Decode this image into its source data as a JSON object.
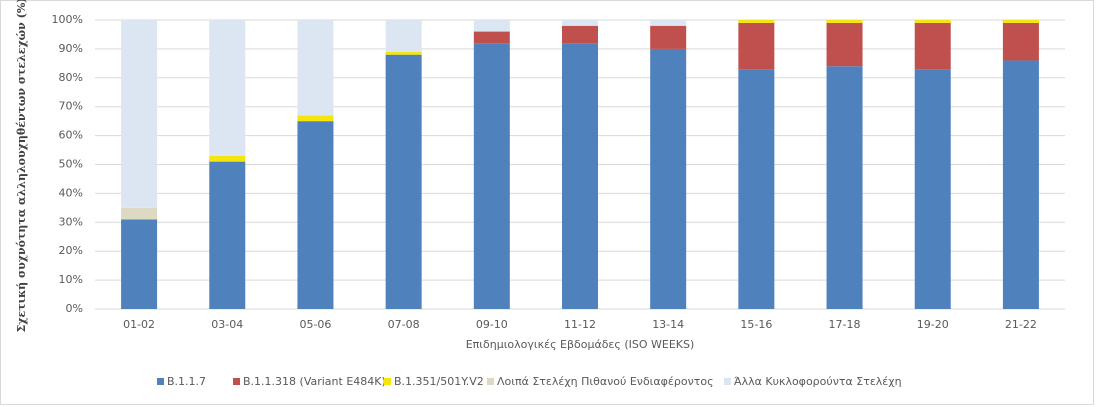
{
  "chart_data": {
    "type": "stacked_bar",
    "y_label": "Σχετική συχνότητα αλληλουχηθέντων στελεχών (%)",
    "x_label": "Επιδημιολογικές Εβδομάδες (ISO WEEKS)",
    "categories": [
      "01-02",
      "03-04",
      "05-06",
      "07-08",
      "09-10",
      "11-12",
      "13-14",
      "15-16",
      "17-18",
      "19-20",
      "21-22"
    ],
    "series": [
      {
        "name": "B.1.1.7",
        "color": "#4f81bd",
        "values": [
          31,
          51,
          65,
          88,
          92,
          92,
          90,
          83,
          84,
          83,
          86
        ]
      },
      {
        "name": "B.1.1.318 (Variant E484K)",
        "color": "#c0504d",
        "values": [
          0,
          0,
          0,
          0,
          4,
          6,
          8,
          16,
          15,
          16,
          13
        ]
      },
      {
        "name": "B.1.351/501Y.V2",
        "color": "#f5e50c",
        "values": [
          0,
          2,
          2,
          1,
          0,
          0,
          0,
          1,
          1,
          1,
          1
        ]
      },
      {
        "name": "Λοιπά Στελέχη Πιθανού Ενδιαφέροντος",
        "color": "#ddd9c3",
        "values": [
          4,
          0,
          0,
          0,
          0,
          0,
          0,
          0,
          0,
          0,
          0
        ]
      },
      {
        "name": "Άλλα Κυκλοφορούντα Στελέχη",
        "color": "#dce6f2",
        "values": [
          65,
          47,
          33,
          11,
          4,
          2,
          2,
          0,
          0,
          0,
          0
        ]
      }
    ],
    "ylim": [
      0,
      100
    ],
    "yticks": [
      {
        "value": 0,
        "label": "0%"
      },
      {
        "value": 10,
        "label": "10%"
      },
      {
        "value": 20,
        "label": "20%"
      },
      {
        "value": 30,
        "label": "30%"
      },
      {
        "value": 40,
        "label": "40%"
      },
      {
        "value": 50,
        "label": "50%"
      },
      {
        "value": 60,
        "label": "60%"
      },
      {
        "value": 70,
        "label": "70%"
      },
      {
        "value": 80,
        "label": "80%"
      },
      {
        "value": 90,
        "label": "90%"
      },
      {
        "value": 100,
        "label": "100%"
      }
    ],
    "legend": "bottom"
  }
}
